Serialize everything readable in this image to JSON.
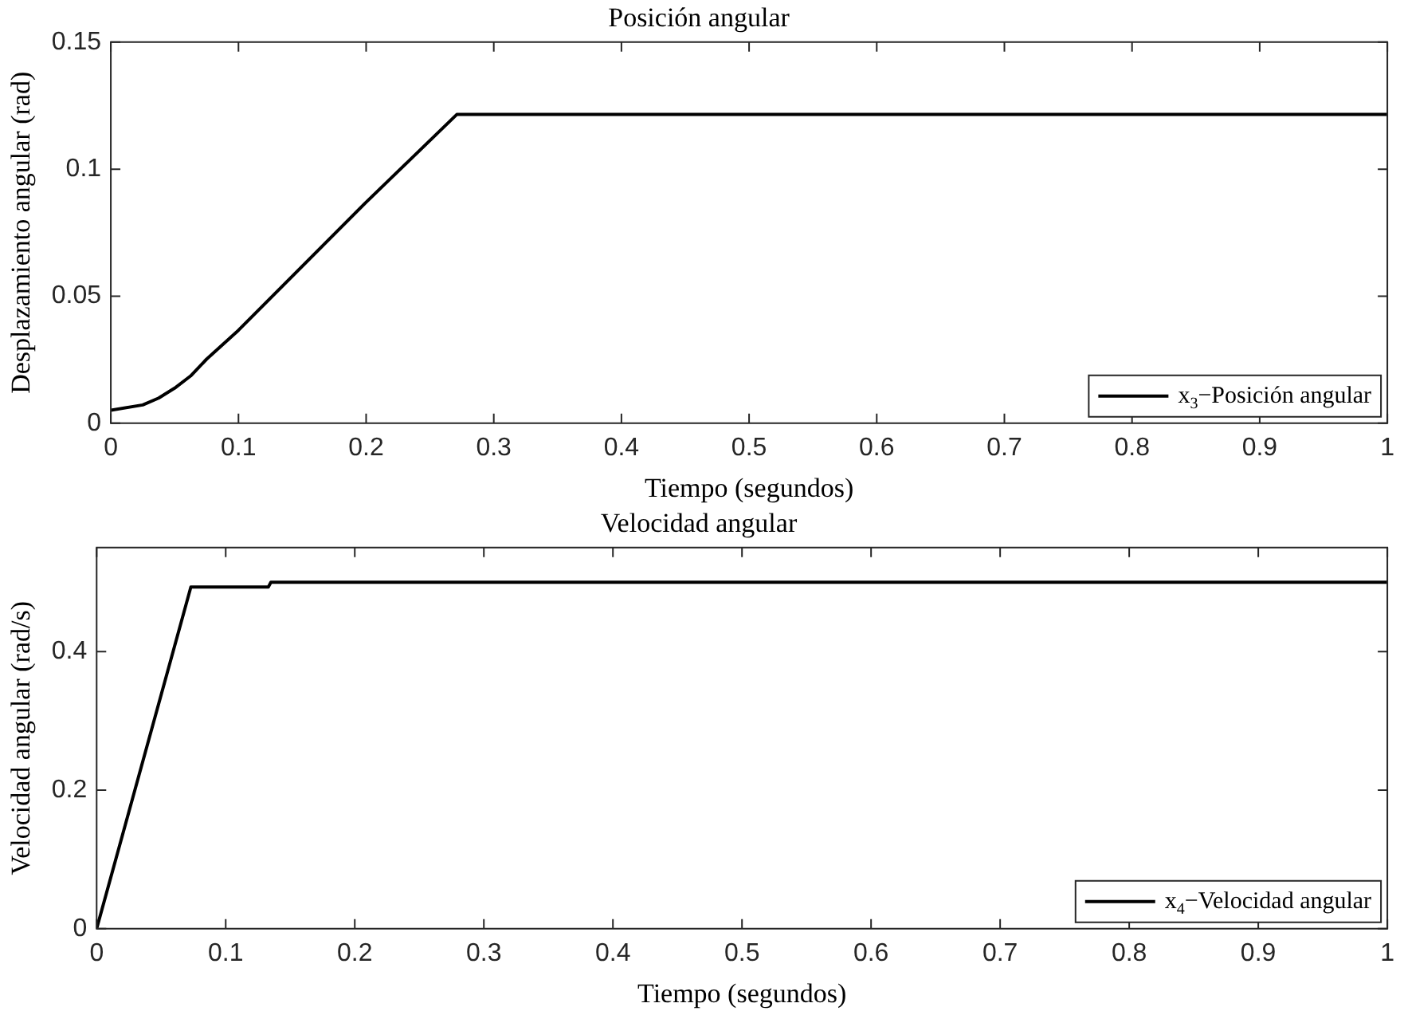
{
  "chart_data": [
    {
      "type": "line",
      "title": "Posición angular",
      "xlabel": "Tiempo (segundos)",
      "ylabel": "Desplazamiento angular (rad)",
      "x": [
        0,
        0.025,
        0.0375,
        0.05,
        0.0625,
        0.075,
        0.1,
        0.2,
        0.271,
        1
      ],
      "series": [
        {
          "name": "x$_{3}$−Posición angular",
          "color": "#000000",
          "values": [
            0.0051,
            0.0072,
            0.0099,
            0.0138,
            0.0186,
            0.0252,
            0.0366,
            0.087,
            0.1215,
            0.1215
          ]
        }
      ],
      "xlim": [
        0,
        1
      ],
      "xticks": [
        0,
        0.1,
        0.2,
        0.3,
        0.4,
        0.5,
        0.6,
        0.7,
        0.8,
        0.9,
        1
      ],
      "ylim": [
        0,
        0.15
      ],
      "yticks": [
        0,
        0.05,
        0.1,
        0.15
      ],
      "grid": false,
      "legend": "bottom right",
      "marker": "none",
      "line_style": "solid"
    },
    {
      "type": "line",
      "title": "Velocidad angular",
      "xlabel": "Tiempo (segundos)",
      "ylabel": "Velocidad angular (rad/s)",
      "x": [
        0,
        0.073,
        0.133,
        0.135,
        1
      ],
      "series": [
        {
          "name": "x$_{4}$−Velocidad angular",
          "color": "#000000",
          "values": [
            0,
            0.493,
            0.493,
            0.5,
            0.5
          ]
        }
      ],
      "xlim": [
        0,
        1
      ],
      "xticks": [
        0,
        0.1,
        0.2,
        0.3,
        0.4,
        0.5,
        0.6,
        0.7,
        0.8,
        0.9,
        1
      ],
      "ylim": [
        0,
        0.55
      ],
      "yticks": [
        0,
        0.2,
        0.4
      ],
      "grid": false,
      "legend": "bottom right",
      "marker": "none",
      "line_style": "solid"
    }
  ]
}
